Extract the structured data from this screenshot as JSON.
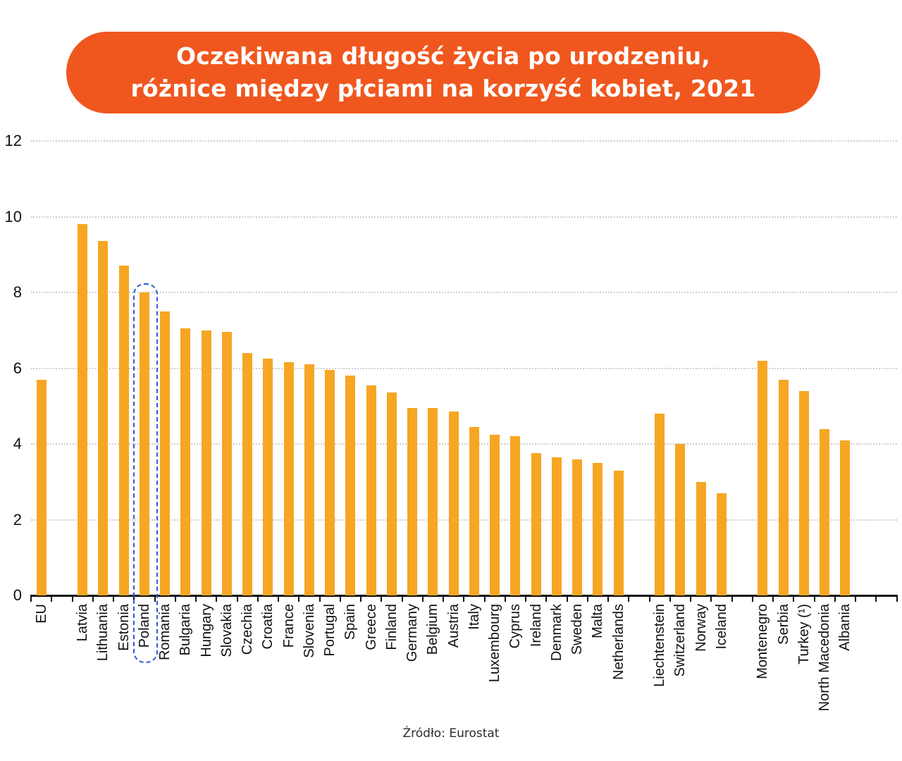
{
  "title_banner": {
    "lines": [
      "Oczekiwana długość życia po urodzeniu,",
      "różnice między płciami na korzyść kobiet, 2021"
    ],
    "background": "#F0571E",
    "text_color": "#ffffff"
  },
  "source_note": "Źródło: Eurostat",
  "chart_data": {
    "type": "bar",
    "title": "Oczekiwana długość życia po urodzeniu, różnice między płciami na korzyść kobiet, 2021",
    "xlabel": "",
    "ylabel": "",
    "ylim": [
      0,
      12
    ],
    "yticks": [
      0,
      2,
      4,
      6,
      8,
      10,
      12
    ],
    "grid": "horizontal-dashed",
    "legend": "none",
    "bar_color": "#F6A623",
    "categories": [
      "EU",
      "Latvia",
      "Lithuania",
      "Estonia",
      "Poland",
      "Romania",
      "Bulgaria",
      "Hungary",
      "Slovakia",
      "Czechia",
      "Croatia",
      "France",
      "Slovenia",
      "Portugal",
      "Spain",
      "Greece",
      "Finland",
      "Germany",
      "Belgium",
      "Austria",
      "Italy",
      "Luxembourg",
      "Cyprus",
      "Ireland",
      "Denmark",
      "Sweden",
      "Malta",
      "Netherlands",
      "Liechtenstein",
      "Switzerland",
      "Norway",
      "Iceland",
      "Montenegro",
      "Serbia",
      "Turkey (¹)",
      "North Macedonia",
      "Albania"
    ],
    "values": [
      5.7,
      9.8,
      9.35,
      8.7,
      8.0,
      7.5,
      7.05,
      7.0,
      6.95,
      6.4,
      6.25,
      6.15,
      6.1,
      5.95,
      5.8,
      5.55,
      5.35,
      4.95,
      4.95,
      4.85,
      4.45,
      4.25,
      4.2,
      3.75,
      3.65,
      3.6,
      3.5,
      3.3,
      4.8,
      4.0,
      3.0,
      2.7,
      6.2,
      5.7,
      5.4,
      4.4,
      4.1
    ],
    "gap_after": [
      "EU",
      "Netherlands",
      "Iceland"
    ],
    "trailing_empty_slots": 2,
    "highlight": {
      "category": "Poland",
      "style": "dashed-capsule-outline",
      "color": "#2D5CD2"
    }
  }
}
